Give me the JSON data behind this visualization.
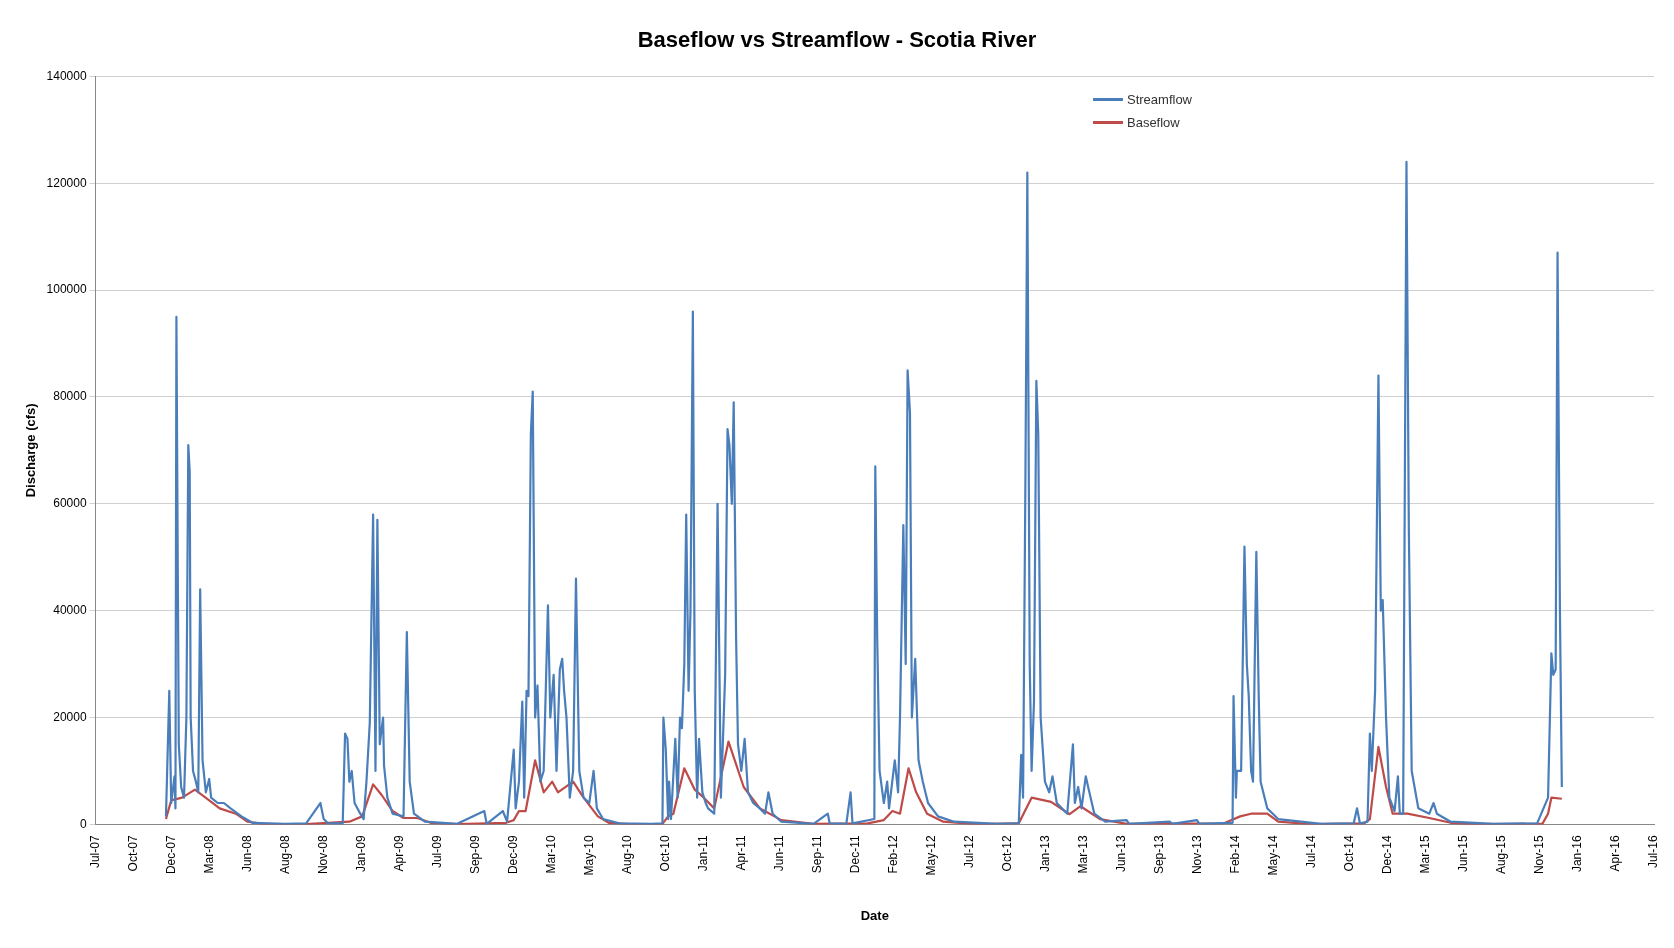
{
  "chart_data": {
    "type": "line",
    "title": "Baseflow vs Streamflow - Scotia River",
    "xlabel": "Date",
    "ylabel": "Discharge (cfs)",
    "xlim": [
      "2007-07-17",
      "2016-07-09"
    ],
    "xticks": [
      {
        "value": "2007-07-17",
        "label": "Jul-07"
      },
      {
        "value": "2007-10-05",
        "label": "Oct-07"
      },
      {
        "value": "2007-12-24",
        "label": "Dec-07"
      },
      {
        "value": "2008-03-13",
        "label": "Mar-08"
      },
      {
        "value": "2008-06-01",
        "label": "Jun-08"
      },
      {
        "value": "2008-08-20",
        "label": "Aug-08"
      },
      {
        "value": "2008-11-08",
        "label": "Nov-08"
      },
      {
        "value": "2009-01-27",
        "label": "Jan-09"
      },
      {
        "value": "2009-04-17",
        "label": "Apr-09"
      },
      {
        "value": "2009-07-06",
        "label": "Jul-09"
      },
      {
        "value": "2009-09-24",
        "label": "Sep-09"
      },
      {
        "value": "2009-12-13",
        "label": "Dec-09"
      },
      {
        "value": "2010-03-03",
        "label": "Mar-10"
      },
      {
        "value": "2010-05-22",
        "label": "May-10"
      },
      {
        "value": "2010-08-10",
        "label": "Aug-10"
      },
      {
        "value": "2010-10-29",
        "label": "Oct-10"
      },
      {
        "value": "2011-01-17",
        "label": "Jan-11"
      },
      {
        "value": "2011-04-07",
        "label": "Apr-11"
      },
      {
        "value": "2011-06-26",
        "label": "Jun-11"
      },
      {
        "value": "2011-09-14",
        "label": "Sep-11"
      },
      {
        "value": "2011-12-03",
        "label": "Dec-11"
      },
      {
        "value": "2012-02-21",
        "label": "Feb-12"
      },
      {
        "value": "2012-05-11",
        "label": "May-12"
      },
      {
        "value": "2012-07-30",
        "label": "Jul-12"
      },
      {
        "value": "2012-10-18",
        "label": "Oct-12"
      },
      {
        "value": "2013-01-06",
        "label": "Jan-13"
      },
      {
        "value": "2013-03-27",
        "label": "Mar-13"
      },
      {
        "value": "2013-06-15",
        "label": "Jun-13"
      },
      {
        "value": "2013-09-03",
        "label": "Sep-13"
      },
      {
        "value": "2013-11-22",
        "label": "Nov-13"
      },
      {
        "value": "2014-02-10",
        "label": "Feb-14"
      },
      {
        "value": "2014-05-01",
        "label": "May-14"
      },
      {
        "value": "2014-07-20",
        "label": "Jul-14"
      },
      {
        "value": "2014-10-08",
        "label": "Oct-14"
      },
      {
        "value": "2014-12-27",
        "label": "Dec-14"
      },
      {
        "value": "2015-03-17",
        "label": "Mar-15"
      },
      {
        "value": "2015-06-05",
        "label": "Jun-15"
      },
      {
        "value": "2015-08-24",
        "label": "Aug-15"
      },
      {
        "value": "2015-11-12",
        "label": "Nov-15"
      },
      {
        "value": "2016-01-31",
        "label": "Jan-16"
      },
      {
        "value": "2016-04-20",
        "label": "Apr-16"
      },
      {
        "value": "2016-07-09",
        "label": "Jul-16"
      }
    ],
    "ylim": [
      0,
      140000
    ],
    "yticks": [
      0,
      20000,
      40000,
      60000,
      80000,
      100000,
      120000,
      140000
    ],
    "grid": "y",
    "legend": "top right",
    "marker": "none",
    "line_style": "solid",
    "series": [
      {
        "name": "Streamflow",
        "color": "#4a7ebb",
        "x": [
          "2007-12-12",
          "2007-12-19",
          "2007-12-23",
          "2007-12-30",
          "2008-01-01",
          "2008-01-03",
          "2008-01-06",
          "2008-01-08",
          "2008-01-13",
          "2008-01-19",
          "2008-01-24",
          "2008-01-28",
          "2008-01-31",
          "2008-02-02",
          "2008-02-07",
          "2008-02-13",
          "2008-02-18",
          "2008-02-22",
          "2008-02-27",
          "2008-03-05",
          "2008-03-12",
          "2008-03-16",
          "2008-03-30",
          "2008-04-12",
          "2008-04-26",
          "2008-05-19",
          "2008-06-11",
          "2008-08-18",
          "2008-10-02",
          "2008-11-01",
          "2008-11-08",
          "2008-11-17",
          "2008-12-18",
          "2008-12-23",
          "2008-12-28",
          "2009-01-01",
          "2009-01-06",
          "2009-01-12",
          "2009-01-24",
          "2009-01-31",
          "2009-02-06",
          "2009-02-13",
          "2009-02-20",
          "2009-02-25",
          "2009-03-01",
          "2009-03-06",
          "2009-03-13",
          "2009-03-15",
          "2009-03-22",
          "2009-04-02",
          "2009-04-25",
          "2009-05-02",
          "2009-05-08",
          "2009-05-17",
          "2009-06-09",
          "2009-08-16",
          "2009-10-12",
          "2009-10-17",
          "2009-11-20",
          "2009-11-29",
          "2009-12-13",
          "2009-12-17",
          "2009-12-24",
          "2009-12-31",
          "2010-01-04",
          "2010-01-09",
          "2010-01-13",
          "2010-01-18",
          "2010-01-22",
          "2010-01-27",
          "2010-02-01",
          "2010-02-07",
          "2010-02-14",
          "2010-02-23",
          "2010-02-28",
          "2010-03-07",
          "2010-03-13",
          "2010-03-20",
          "2010-03-25",
          "2010-03-29",
          "2010-04-03",
          "2010-04-10",
          "2010-04-17",
          "2010-04-23",
          "2010-04-30",
          "2010-05-09",
          "2010-05-21",
          "2010-05-30",
          "2010-06-06",
          "2010-06-19",
          "2010-07-23",
          "2010-09-29",
          "2010-10-22",
          "2010-10-24",
          "2010-10-29",
          "2010-11-03",
          "2010-11-05",
          "2010-11-09",
          "2010-11-18",
          "2010-11-23",
          "2010-11-28",
          "2010-12-02",
          "2010-12-07",
          "2010-12-11",
          "2010-12-16",
          "2010-12-20",
          "2010-12-25",
          "2010-12-29",
          "2011-01-03",
          "2011-01-07",
          "2011-01-14",
          "2011-01-21",
          "2011-01-26",
          "2011-02-08",
          "2011-02-15",
          "2011-02-22",
          "2011-02-26",
          "2011-03-03",
          "2011-03-08",
          "2011-03-12",
          "2011-03-17",
          "2011-03-21",
          "2011-03-26",
          "2011-03-30",
          "2011-04-06",
          "2011-04-13",
          "2011-04-20",
          "2011-05-01",
          "2011-05-15",
          "2011-05-26",
          "2011-06-02",
          "2011-06-11",
          "2011-06-29",
          "2011-09-05",
          "2011-10-05",
          "2011-10-09",
          "2011-11-13",
          "2011-11-22",
          "2011-11-26",
          "2012-01-11",
          "2012-01-13",
          "2012-01-17",
          "2012-01-22",
          "2012-01-31",
          "2012-02-07",
          "2012-02-11",
          "2012-02-23",
          "2012-03-01",
          "2012-03-05",
          "2012-03-12",
          "2012-03-17",
          "2012-03-21",
          "2012-03-26",
          "2012-03-30",
          "2012-04-06",
          "2012-04-13",
          "2012-04-22",
          "2012-05-03",
          "2012-05-24",
          "2012-06-27",
          "2012-09-26",
          "2012-11-10",
          "2012-11-15",
          "2012-11-19",
          "2012-11-24",
          "2012-11-28",
          "2012-12-03",
          "2012-12-07",
          "2012-12-12",
          "2012-12-17",
          "2012-12-21",
          "2012-12-26",
          "2013-01-04",
          "2013-01-13",
          "2013-01-20",
          "2013-01-29",
          "2013-02-20",
          "2013-03-04",
          "2013-03-08",
          "2013-03-15",
          "2013-03-22",
          "2013-03-31",
          "2013-04-05",
          "2013-04-18",
          "2013-05-11",
          "2013-06-25",
          "2013-06-30",
          "2013-09-24",
          "2013-09-29",
          "2013-11-20",
          "2013-11-25",
          "2014-02-03",
          "2014-02-05",
          "2014-02-10",
          "2014-02-12",
          "2014-02-21",
          "2014-02-28",
          "2014-03-05",
          "2014-03-09",
          "2014-03-14",
          "2014-03-18",
          "2014-03-25",
          "2014-03-30",
          "2014-04-03",
          "2014-04-17",
          "2014-05-10",
          "2014-08-09",
          "2014-10-16",
          "2014-10-23",
          "2014-10-29",
          "2014-11-14",
          "2014-11-19",
          "2014-11-23",
          "2014-11-30",
          "2014-12-07",
          "2014-12-12",
          "2014-12-16",
          "2014-12-23",
          "2014-12-30",
          "2015-01-10",
          "2015-01-17",
          "2015-01-21",
          "2015-01-28",
          "2015-02-04",
          "2015-02-09",
          "2015-02-15",
          "2015-03-01",
          "2015-03-24",
          "2015-04-02",
          "2015-04-09",
          "2015-05-08",
          "2015-08-07",
          "2015-11-06",
          "2015-11-29",
          "2015-12-06",
          "2015-12-10",
          "2015-12-15",
          "2015-12-19",
          "2015-12-24",
          "2015-12-28"
        ],
        "values": [
          1500,
          25000,
          4000,
          9000,
          3000,
          95000,
          46000,
          15000,
          7000,
          5000,
          20000,
          71000,
          66000,
          20000,
          10000,
          8000,
          6000,
          44000,
          12000,
          6000,
          8500,
          5000,
          4000,
          4000,
          3000,
          1500,
          300,
          100,
          200,
          4000,
          1000,
          200,
          200,
          17000,
          16000,
          8000,
          10000,
          4000,
          2000,
          1000,
          8000,
          19000,
          58000,
          10000,
          57000,
          15000,
          20000,
          11000,
          5000,
          2000,
          1500,
          36000,
          8000,
          2000,
          500,
          100,
          2500,
          100,
          2500,
          500,
          14000,
          3000,
          8000,
          23000,
          5000,
          25000,
          24000,
          73000,
          81000,
          20000,
          26000,
          8000,
          10000,
          41000,
          20000,
          28000,
          10000,
          29000,
          31000,
          25000,
          20000,
          5000,
          10000,
          46000,
          10000,
          5000,
          4000,
          10000,
          3000,
          1000,
          200,
          100,
          200,
          20000,
          14000,
          1000,
          8000,
          1000,
          16000,
          5000,
          20000,
          18000,
          30000,
          58000,
          25000,
          40000,
          96000,
          25000,
          5000,
          16000,
          6000,
          4000,
          3000,
          2000,
          60000,
          5000,
          15000,
          28000,
          74000,
          71000,
          60000,
          79000,
          35000,
          15000,
          10000,
          16000,
          6000,
          4000,
          3000,
          2000,
          6000,
          2000,
          500,
          100,
          2000,
          200,
          100,
          6000,
          200,
          1000,
          67000,
          35000,
          10000,
          4000,
          8000,
          3000,
          12000,
          6000,
          20000,
          56000,
          30000,
          85000,
          77000,
          20000,
          31000,
          12000,
          8000,
          4000,
          1500,
          500,
          100,
          200,
          13000,
          5000,
          65000,
          122000,
          30000,
          10000,
          23000,
          83000,
          73000,
          20000,
          8000,
          6000,
          9000,
          4000,
          2000,
          15000,
          4000,
          7000,
          3000,
          9000,
          7000,
          2000,
          500,
          800,
          100,
          500,
          100,
          800,
          100,
          300,
          24000,
          5000,
          10000,
          10000,
          52000,
          30000,
          24000,
          10000,
          8000,
          51000,
          24000,
          8000,
          3000,
          1000,
          100,
          200,
          3000,
          200,
          500,
          17000,
          10000,
          25000,
          84000,
          40000,
          42000,
          20000,
          5000,
          2500,
          9000,
          2000,
          2000,
          124000,
          55000,
          10000,
          3000,
          2000,
          4000,
          2000,
          500,
          100,
          200,
          5000,
          32000,
          28000,
          29000,
          107000,
          40000,
          7000
        ]
      },
      {
        "name": "Baseflow",
        "color": "#be4b48",
        "x": [
          "2007-12-12",
          "2007-12-23",
          "2008-01-15",
          "2008-02-11",
          "2008-03-12",
          "2008-04-03",
          "2008-05-07",
          "2008-06-01",
          "2008-07-03",
          "2008-10-02",
          "2009-01-01",
          "2009-01-28",
          "2009-02-20",
          "2009-03-10",
          "2009-04-02",
          "2009-04-25",
          "2009-05-24",
          "2009-06-21",
          "2009-08-16",
          "2009-11-27",
          "2009-12-13",
          "2009-12-24",
          "2010-01-07",
          "2010-01-27",
          "2010-02-14",
          "2010-03-04",
          "2010-03-16",
          "2010-04-17",
          "2010-05-09",
          "2010-06-08",
          "2010-07-01",
          "2010-08-15",
          "2010-10-22",
          "2010-11-03",
          "2010-11-14",
          "2010-12-07",
          "2010-12-29",
          "2011-01-17",
          "2011-02-08",
          "2011-03-10",
          "2011-04-11",
          "2011-05-15",
          "2011-06-29",
          "2011-09-05",
          "2011-12-28",
          "2012-01-31",
          "2012-02-18",
          "2012-03-05",
          "2012-03-23",
          "2012-04-08",
          "2012-05-01",
          "2012-06-04",
          "2012-08-11",
          "2012-11-10",
          "2012-12-07",
          "2013-01-17",
          "2013-02-25",
          "2013-03-20",
          "2013-04-30",
          "2013-06-25",
          "2014-01-16",
          "2014-02-19",
          "2014-03-14",
          "2014-04-17",
          "2014-05-10",
          "2014-07-17",
          "2014-11-07",
          "2014-11-19",
          "2014-12-07",
          "2014-12-23",
          "2015-01-06",
          "2015-02-06",
          "2015-03-24",
          "2015-05-08",
          "2015-06-23",
          "2015-11-17",
          "2015-11-29",
          "2015-12-06",
          "2015-12-28"
        ],
        "values": [
          1000,
          4500,
          5000,
          6500,
          4500,
          3000,
          2000,
          500,
          100,
          50,
          500,
          1500,
          7500,
          5500,
          2500,
          1200,
          1200,
          300,
          50,
          300,
          800,
          2500,
          2500,
          12000,
          6000,
          8000,
          6000,
          8000,
          5000,
          1500,
          300,
          50,
          100,
          1500,
          2000,
          10500,
          6500,
          5000,
          3000,
          15500,
          7000,
          3000,
          800,
          100,
          200,
          800,
          2500,
          2000,
          10500,
          6000,
          2000,
          500,
          50,
          200,
          5000,
          4200,
          1900,
          3400,
          1000,
          100,
          200,
          1500,
          2000,
          2000,
          500,
          50,
          200,
          1000,
          14500,
          7000,
          2000,
          2000,
          1200,
          300,
          50,
          100,
          2000,
          5000,
          4800
        ]
      }
    ]
  }
}
